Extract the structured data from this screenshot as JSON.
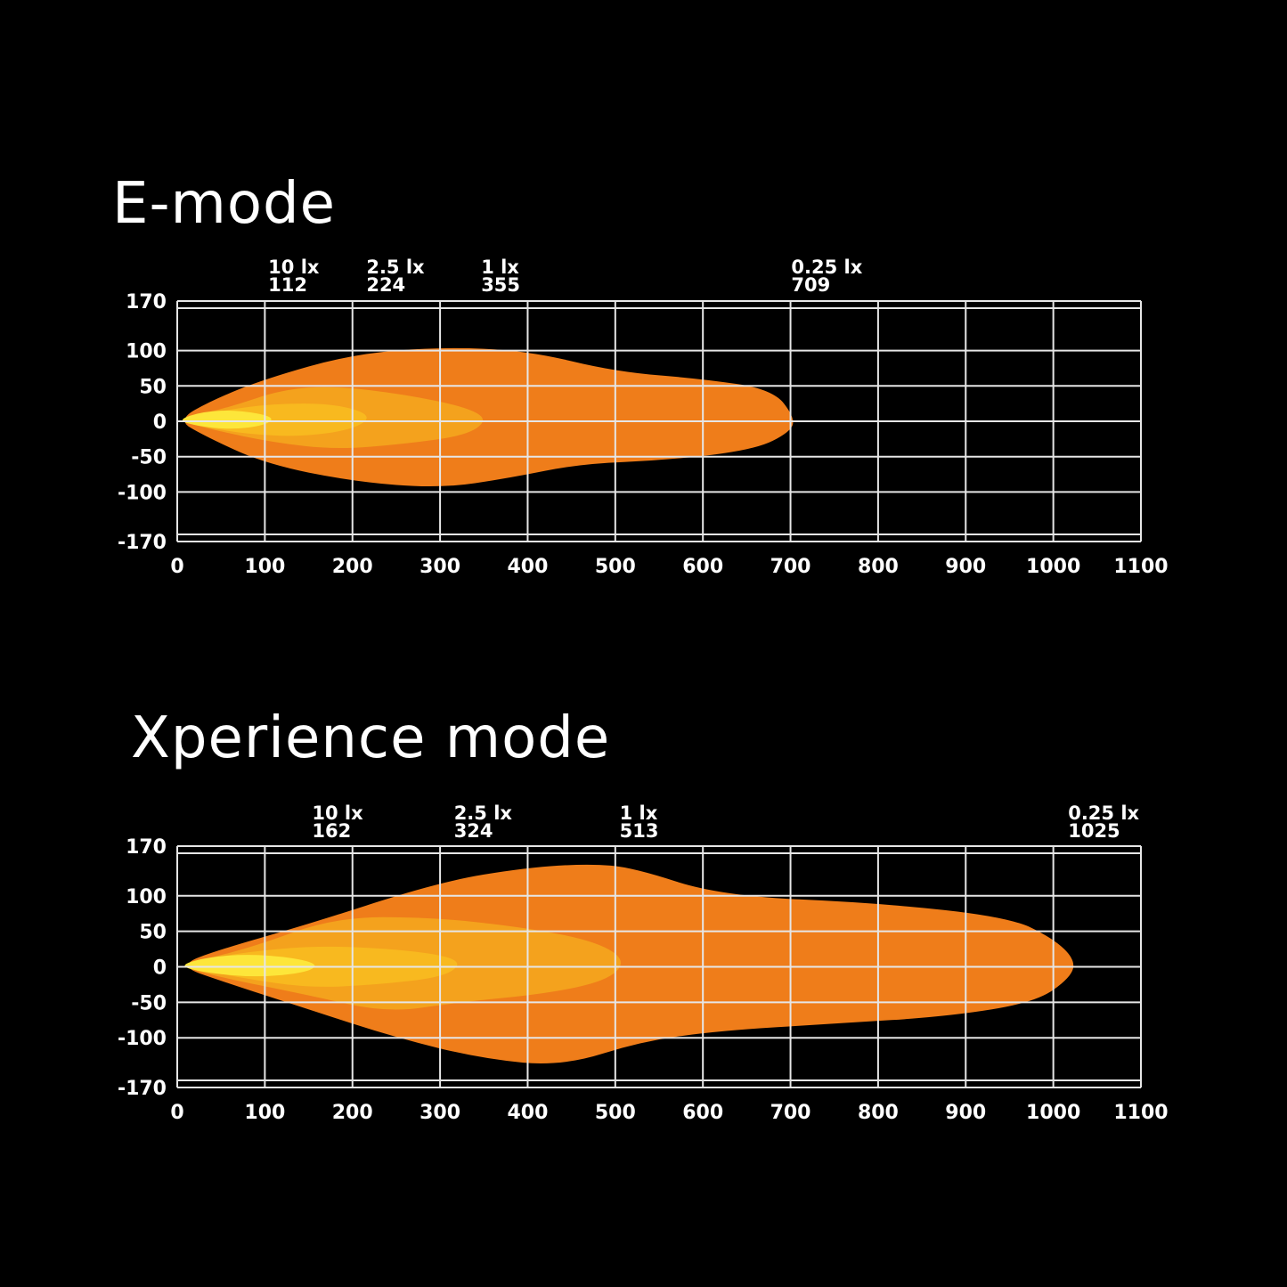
{
  "chart_data": [
    {
      "type": "area",
      "title": "E-mode",
      "xlabel": "",
      "ylabel": "",
      "xlim": [
        0,
        1100
      ],
      "ylim": [
        -170,
        170
      ],
      "x_ticks": [
        0,
        100,
        200,
        300,
        400,
        500,
        600,
        700,
        800,
        900,
        1000,
        1100
      ],
      "y_ticks": [
        170,
        100,
        50,
        0,
        -50,
        -100,
        -170
      ],
      "grid": true,
      "annotations": [
        {
          "lux": "10 lx",
          "distance": "112",
          "x": 112
        },
        {
          "lux": "2.5 lx",
          "distance": "224",
          "x": 224
        },
        {
          "lux": "1 lx",
          "distance": "355",
          "x": 355
        },
        {
          "lux": "0.25 lx",
          "distance": "709",
          "x": 709
        }
      ],
      "series": [
        {
          "color": "#ef7d1a",
          "outline": [
            [
              0,
              2
            ],
            [
              40,
              30
            ],
            [
              100,
              60
            ],
            [
              200,
              95
            ],
            [
              300,
              105
            ],
            [
              400,
              100
            ],
            [
              500,
              70
            ],
            [
              600,
              60
            ],
            [
              680,
              45
            ],
            [
              705,
              5
            ],
            [
              700,
              -15
            ],
            [
              660,
              -40
            ],
            [
              560,
              -55
            ],
            [
              460,
              -60
            ],
            [
              380,
              -80
            ],
            [
              300,
              -95
            ],
            [
              200,
              -85
            ],
            [
              100,
              -60
            ],
            [
              30,
              -20
            ]
          ]
        },
        {
          "color": "#f4a21d",
          "outline": [
            [
              0,
              2
            ],
            [
              60,
              20
            ],
            [
              120,
              45
            ],
            [
              180,
              50
            ],
            [
              260,
              38
            ],
            [
              330,
              20
            ],
            [
              355,
              2
            ],
            [
              330,
              -20
            ],
            [
              260,
              -32
            ],
            [
              180,
              -40
            ],
            [
              110,
              -30
            ],
            [
              40,
              -12
            ]
          ]
        },
        {
          "color": "#f8b91f",
          "outline": [
            [
              0,
              2
            ],
            [
              50,
              15
            ],
            [
              110,
              25
            ],
            [
              180,
              25
            ],
            [
              224,
              8
            ],
            [
              200,
              -12
            ],
            [
              140,
              -22
            ],
            [
              80,
              -18
            ],
            [
              30,
              -8
            ]
          ]
        },
        {
          "color": "#fde63a",
          "outline": [
            [
              0,
              2
            ],
            [
              30,
              14
            ],
            [
              70,
              16
            ],
            [
              112,
              6
            ],
            [
              100,
              -6
            ],
            [
              60,
              -12
            ],
            [
              20,
              -6
            ]
          ]
        }
      ]
    },
    {
      "type": "area",
      "title": "Xperience mode",
      "xlabel": "",
      "ylabel": "",
      "xlim": [
        0,
        1100
      ],
      "ylim": [
        -170,
        170
      ],
      "x_ticks": [
        0,
        100,
        200,
        300,
        400,
        500,
        600,
        700,
        800,
        900,
        1000,
        1100
      ],
      "y_ticks": [
        170,
        100,
        50,
        0,
        -50,
        -100,
        -170
      ],
      "grid": true,
      "annotations": [
        {
          "lux": "10 lx",
          "distance": "162",
          "x": 162
        },
        {
          "lux": "2.5 lx",
          "distance": "324",
          "x": 324
        },
        {
          "lux": "1 lx",
          "distance": "513",
          "x": 513
        },
        {
          "lux": "0.25 lx",
          "distance": "1025",
          "x": 1025
        }
      ],
      "series": [
        {
          "color": "#ef7d1a",
          "outline": [
            [
              0,
              2
            ],
            [
              50,
              25
            ],
            [
              150,
              60
            ],
            [
              300,
              120
            ],
            [
              400,
              140
            ],
            [
              470,
              145
            ],
            [
              520,
              140
            ],
            [
              620,
              100
            ],
            [
              800,
              90
            ],
            [
              950,
              70
            ],
            [
              1000,
              40
            ],
            [
              1025,
              10
            ],
            [
              1020,
              -15
            ],
            [
              980,
              -50
            ],
            [
              880,
              -70
            ],
            [
              750,
              -80
            ],
            [
              620,
              -90
            ],
            [
              530,
              -105
            ],
            [
              440,
              -140
            ],
            [
              350,
              -130
            ],
            [
              250,
              -100
            ],
            [
              150,
              -60
            ],
            [
              50,
              -20
            ]
          ]
        },
        {
          "color": "#f4a21d",
          "outline": [
            [
              0,
              2
            ],
            [
              80,
              25
            ],
            [
              180,
              70
            ],
            [
              290,
              70
            ],
            [
              400,
              55
            ],
            [
              480,
              35
            ],
            [
              513,
              8
            ],
            [
              490,
              -20
            ],
            [
              420,
              -38
            ],
            [
              320,
              -50
            ],
            [
              240,
              -65
            ],
            [
              150,
              -40
            ],
            [
              50,
              -15
            ]
          ]
        },
        {
          "color": "#f8b91f",
          "outline": [
            [
              0,
              2
            ],
            [
              70,
              20
            ],
            [
              160,
              30
            ],
            [
              250,
              25
            ],
            [
              310,
              15
            ],
            [
              324,
              2
            ],
            [
              300,
              -15
            ],
            [
              230,
              -25
            ],
            [
              150,
              -30
            ],
            [
              70,
              -15
            ]
          ]
        },
        {
          "color": "#fde63a",
          "outline": [
            [
              0,
              2
            ],
            [
              40,
              15
            ],
            [
              100,
              18
            ],
            [
              162,
              6
            ],
            [
              150,
              -8
            ],
            [
              90,
              -15
            ],
            [
              30,
              -8
            ]
          ]
        }
      ]
    }
  ]
}
